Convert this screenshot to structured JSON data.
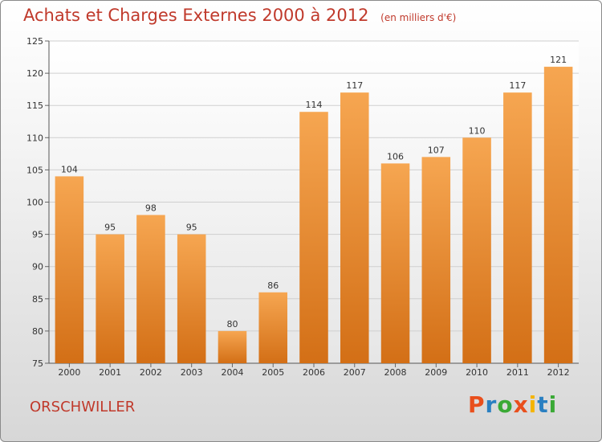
{
  "title": "Achats et Charges Externes 2000 à 2012",
  "unit_note": "(en milliers d'€)",
  "commune": "ORSCHWILLER",
  "logo": {
    "text": "Proxiti",
    "letters": [
      "P",
      "r",
      "o",
      "x",
      "i",
      "t",
      "i"
    ],
    "colors": [
      "#e94f1c",
      "#2a7fc1",
      "#3aa935",
      "#e94f1c",
      "#f4b400",
      "#2a7fc1",
      "#3aa935"
    ]
  },
  "colors": {
    "bar": "#f39a3e",
    "bar_dark": "#d8741a",
    "title": "#c0392b"
  },
  "chart_data": {
    "type": "bar",
    "title": "Achats et Charges Externes 2000 à 2012",
    "subtitle": "(en milliers d'€)",
    "categories": [
      "2000",
      "2001",
      "2002",
      "2003",
      "2004",
      "2005",
      "2006",
      "2007",
      "2008",
      "2009",
      "2010",
      "2011",
      "2012"
    ],
    "values": [
      104,
      95,
      98,
      95,
      80,
      86,
      114,
      117,
      106,
      107,
      110,
      117,
      121
    ],
    "ylim": [
      75,
      125
    ],
    "yticks": [
      75,
      80,
      85,
      90,
      95,
      100,
      105,
      110,
      115,
      120,
      125
    ],
    "grid": true,
    "xlabel": "",
    "ylabel": ""
  }
}
